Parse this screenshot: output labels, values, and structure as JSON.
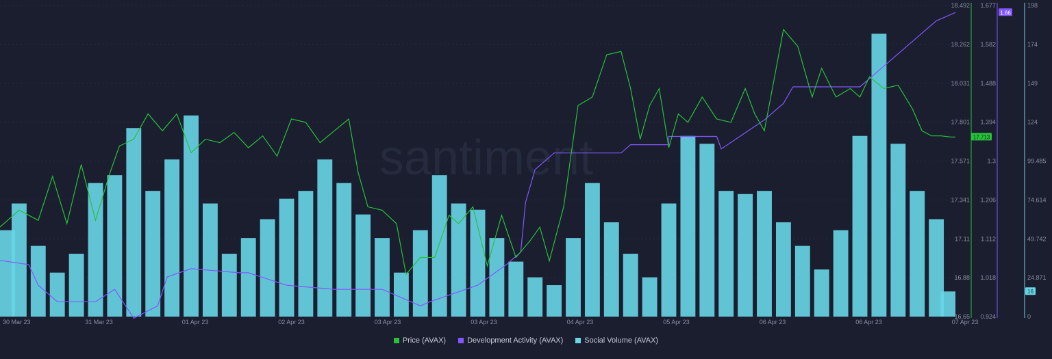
{
  "watermark": "santiment",
  "colors": {
    "background": "#1b1e2f",
    "price": "#26c23a",
    "dev_activity": "#8257ff",
    "social_volume": "#68d6e8",
    "gridline": "#2a2e42",
    "axis_text": "#8a8ea3"
  },
  "legend": [
    {
      "label": "Price (AVAX)",
      "color": "#26c23a"
    },
    {
      "label": "Development Activity (AVAX)",
      "color": "#8257ff"
    },
    {
      "label": "Social Volume (AVAX)",
      "color": "#68d6e8"
    }
  ],
  "chart_data": {
    "type": "bar",
    "x_tick_labels": [
      "30 Mar 23",
      "31 Mar 23",
      "01 Apr 23",
      "02 Apr 23",
      "03 Apr 23",
      "03 Apr 23",
      "04 Apr 23",
      "05 Apr 23",
      "06 Apr 23",
      "06 Apr 23",
      "07 Apr 23"
    ],
    "axes": {
      "price": {
        "ticks": [
          "18.492",
          "18.262",
          "18.031",
          "17.801",
          "17.571",
          "17.341",
          "17.11",
          "16.88",
          "16.65"
        ],
        "range": [
          16.65,
          18.492
        ]
      },
      "dev_activity": {
        "ticks": [
          "1.677",
          "1.582",
          "1.488",
          "1.394",
          "1.3",
          "1.206",
          "1.112",
          "1.018",
          "0.924"
        ],
        "range": [
          0.924,
          1.677
        ]
      },
      "social_volume": {
        "ticks": [
          "198",
          "174",
          "149",
          "124",
          "99.485",
          "74.614",
          "49.742",
          "24.871",
          "0"
        ],
        "range": [
          0,
          198
        ]
      }
    },
    "current_labels": {
      "price": "17.713",
      "dev_activity": "1.66",
      "social_volume": "16"
    },
    "series": [
      {
        "name": "Price (AVAX)",
        "type": "line",
        "axis": "price",
        "x": [
          0,
          0.02,
          0.04,
          0.055,
          0.07,
          0.085,
          0.1,
          0.115,
          0.125,
          0.14,
          0.155,
          0.17,
          0.185,
          0.2,
          0.215,
          0.23,
          0.245,
          0.26,
          0.275,
          0.29,
          0.305,
          0.32,
          0.335,
          0.35,
          0.365,
          0.375,
          0.385,
          0.4,
          0.415,
          0.425,
          0.44,
          0.455,
          0.47,
          0.48,
          0.495,
          0.51,
          0.525,
          0.54,
          0.555,
          0.565,
          0.575,
          0.59,
          0.605,
          0.62,
          0.635,
          0.65,
          0.66,
          0.67,
          0.68,
          0.69,
          0.7,
          0.71,
          0.72,
          0.735,
          0.75,
          0.765,
          0.78,
          0.79,
          0.8,
          0.81,
          0.82,
          0.835,
          0.85,
          0.86,
          0.875,
          0.89,
          0.9,
          0.91,
          0.925,
          0.94,
          0.955,
          0.965,
          0.975,
          0.985,
          0.995,
          1.0
        ],
        "values": [
          17.18,
          17.28,
          17.22,
          17.48,
          17.2,
          17.55,
          17.22,
          17.5,
          17.66,
          17.7,
          17.85,
          17.75,
          17.85,
          17.62,
          17.7,
          17.68,
          17.74,
          17.65,
          17.72,
          17.6,
          17.82,
          17.8,
          17.68,
          17.75,
          17.82,
          17.5,
          17.3,
          17.28,
          17.2,
          16.9,
          17.0,
          17.0,
          17.25,
          17.2,
          17.3,
          16.95,
          17.25,
          17.0,
          17.1,
          17.18,
          16.98,
          17.3,
          17.9,
          17.95,
          18.2,
          18.22,
          18.0,
          17.7,
          17.9,
          18.0,
          17.65,
          17.85,
          17.8,
          17.95,
          17.82,
          17.8,
          18.0,
          17.85,
          17.75,
          18.05,
          18.35,
          18.25,
          17.95,
          18.12,
          17.95,
          18.0,
          17.95,
          18.07,
          18.0,
          18.02,
          17.88,
          17.75,
          17.72,
          17.72,
          17.713,
          17.713
        ]
      },
      {
        "name": "Development Activity (AVAX)",
        "type": "line",
        "axis": "dev_activity",
        "x": [
          0,
          0.03,
          0.04,
          0.06,
          0.09,
          0.1,
          0.12,
          0.14,
          0.165,
          0.175,
          0.2,
          0.25,
          0.26,
          0.3,
          0.35,
          0.4,
          0.44,
          0.45,
          0.5,
          0.53,
          0.545,
          0.55,
          0.56,
          0.58,
          0.6,
          0.65,
          0.66,
          0.7,
          0.7,
          0.75,
          0.755,
          0.8,
          0.82,
          0.83,
          0.9,
          0.91,
          0.95,
          0.98,
          1.0
        ],
        "values": [
          1.06,
          1.05,
          1.0,
          0.96,
          0.96,
          0.96,
          0.99,
          0.92,
          0.95,
          1.02,
          1.04,
          1.03,
          1.03,
          1.0,
          0.99,
          0.99,
          0.95,
          0.96,
          1.0,
          1.05,
          1.08,
          1.2,
          1.28,
          1.32,
          1.32,
          1.32,
          1.34,
          1.34,
          1.36,
          1.36,
          1.33,
          1.4,
          1.44,
          1.48,
          1.48,
          1.5,
          1.58,
          1.64,
          1.66
        ]
      },
      {
        "name": "Social Volume (AVAX)",
        "type": "bar",
        "axis": "social_volume",
        "x": [
          0,
          0.02,
          0.04,
          0.06,
          0.08,
          0.1,
          0.12,
          0.14,
          0.16,
          0.18,
          0.2,
          0.22,
          0.24,
          0.26,
          0.28,
          0.3,
          0.32,
          0.34,
          0.36,
          0.38,
          0.4,
          0.42,
          0.44,
          0.46,
          0.48,
          0.5,
          0.52,
          0.54,
          0.56,
          0.58,
          0.6,
          0.62,
          0.64,
          0.66,
          0.68,
          0.7,
          0.72,
          0.74,
          0.76,
          0.78,
          0.8,
          0.82,
          0.84,
          0.86,
          0.88,
          0.9,
          0.92,
          0.94,
          0.96,
          0.98,
          1.0
        ],
        "values": [
          55,
          72,
          45,
          28,
          40,
          85,
          90,
          120,
          80,
          100,
          128,
          72,
          40,
          50,
          62,
          75,
          80,
          100,
          85,
          65,
          50,
          28,
          55,
          90,
          72,
          68,
          50,
          35,
          25,
          20,
          50,
          85,
          60,
          40,
          25,
          72,
          115,
          110,
          80,
          78,
          80,
          60,
          45,
          30,
          55,
          115,
          180,
          110,
          80,
          62,
          16
        ]
      }
    ]
  }
}
